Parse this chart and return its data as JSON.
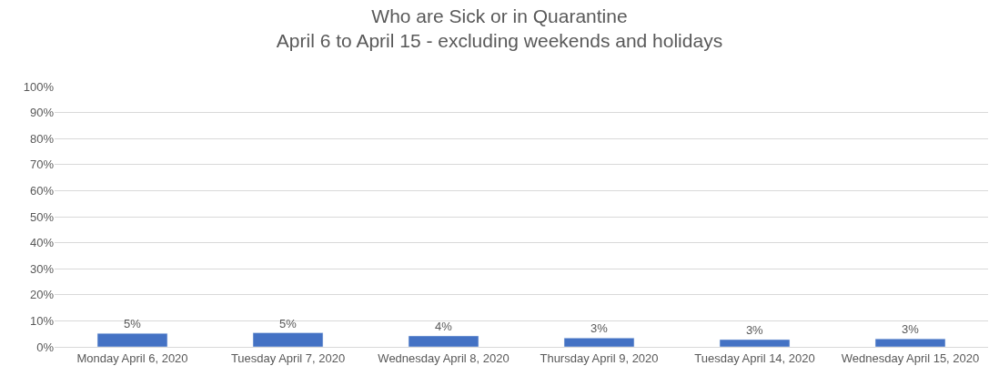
{
  "chart_data": {
    "type": "bar",
    "title": "Who are Sick or in Quarantine",
    "subtitle": "April 6 to April 15 - excluding weekends and holidays",
    "categories": [
      "Monday April 6, 2020",
      "Tuesday April 7, 2020",
      "Wednesday April 8, 2020",
      "Thursday April 9, 2020",
      "Tuesday April 14, 2020",
      "Wednesday April 15, 2020"
    ],
    "values": [
      5.2,
      5.4,
      4.2,
      3.4,
      2.8,
      3.1
    ],
    "value_labels": [
      "5%",
      "5%",
      "4%",
      "3%",
      "3%",
      "3%"
    ],
    "color": "#4472c4",
    "ylim": [
      0,
      100
    ],
    "yticks": [
      {
        "value": 0,
        "label": "0%"
      },
      {
        "value": 10,
        "label": "10%"
      },
      {
        "value": 20,
        "label": "20%"
      },
      {
        "value": 30,
        "label": "30%"
      },
      {
        "value": 40,
        "label": "40%"
      },
      {
        "value": 50,
        "label": "50%"
      },
      {
        "value": 60,
        "label": "60%"
      },
      {
        "value": 70,
        "label": "70%"
      },
      {
        "value": 80,
        "label": "80%"
      },
      {
        "value": 90,
        "label": "90%"
      },
      {
        "value": 100,
        "label": "100%"
      }
    ],
    "grid": "y"
  }
}
